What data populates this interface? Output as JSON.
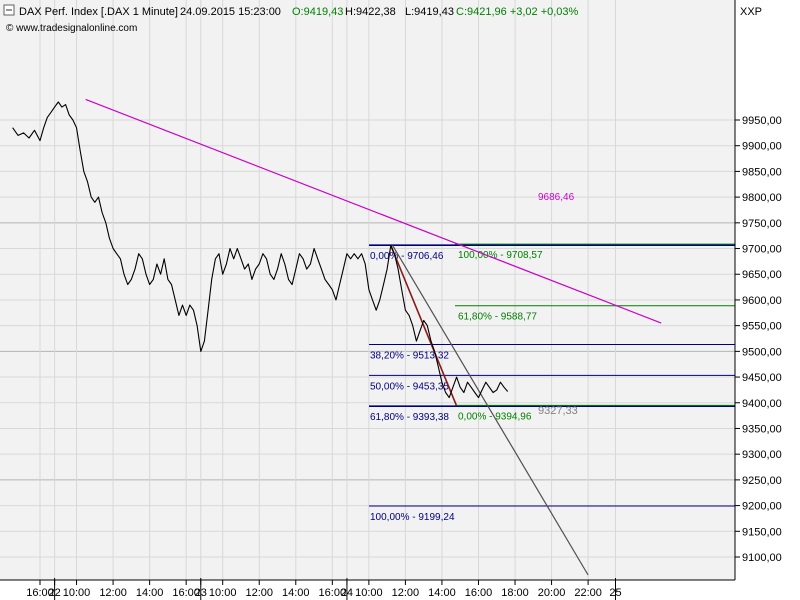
{
  "header": {
    "name": "DAX Perf. Index [.DAX  1 Minute]",
    "datetime": "24.09.2015 15:23:00",
    "open": "O:9419,43",
    "high": "H:9422,38",
    "low": "L:9419,43",
    "change": "C:9421,96 +3,02 +0,03%",
    "watermark": "© www.tradesignalonline.com",
    "symbol_label": "XXP"
  },
  "colors": {
    "background": "#f2f2f2",
    "grid": "#c8c8c8",
    "price": "#000000",
    "down_move": "#8b1a1a",
    "fib_retracement": "#000080",
    "fib_extension": "#008000",
    "trend_magenta": "#cc00cc",
    "projection": "#505050",
    "projection_label": "#808080",
    "header_change": "#008000"
  },
  "chart_data": {
    "type": "line",
    "title": "DAX Perf. Index [.DAX  1 Minute]",
    "xlabel": "",
    "ylabel": "",
    "ylim": [
      9065,
      10000
    ],
    "y_ticks": [
      9100,
      9150,
      9200,
      9250,
      9300,
      9350,
      9400,
      9450,
      9500,
      9550,
      9600,
      9650,
      9700,
      9750,
      9800,
      9850,
      9900,
      9950
    ],
    "y_tick_labels": [
      "9100,00",
      "9150,00",
      "9200,00",
      "9250,00",
      "9300,00",
      "9350,00",
      "9400,00",
      "9450,00",
      "9500,00",
      "9550,00",
      "9600,00",
      "9650,00",
      "9700,00",
      "9750,00",
      "9800,00",
      "9850,00",
      "9900,00",
      "9950,00"
    ],
    "x_tick_labels": [
      {
        "label": "16:00",
        "t": 0.0
      },
      {
        "label": "22",
        "t": 0.8
      },
      {
        "label": "10:00",
        "t": 2.0
      },
      {
        "label": "12:00",
        "t": 4.0
      },
      {
        "label": "14:00",
        "t": 6.0
      },
      {
        "label": "16:00",
        "t": 8.0
      },
      {
        "label": "23",
        "t": 8.8
      },
      {
        "label": "10:00",
        "t": 10.0
      },
      {
        "label": "12:00",
        "t": 12.0
      },
      {
        "label": "14:00",
        "t": 14.0
      },
      {
        "label": "16:00",
        "t": 16.0
      },
      {
        "label": "24",
        "t": 16.8
      },
      {
        "label": "10:00",
        "t": 18.0
      },
      {
        "label": "12:00",
        "t": 20.0
      },
      {
        "label": "14:00",
        "t": 22.0
      },
      {
        "label": "16:00",
        "t": 24.0
      },
      {
        "label": "18:00",
        "t": 26.0
      },
      {
        "label": "20:00",
        "t": 28.0
      },
      {
        "label": "22:00",
        "t": 30.0
      },
      {
        "label": "25",
        "t": 31.5
      }
    ],
    "day_separators_t": [
      0.8,
      8.8,
      16.8,
      31.5
    ],
    "grid": true,
    "series": [
      {
        "points": [
          [
            -1.5,
            9935
          ],
          [
            -1.2,
            9920
          ],
          [
            -0.9,
            9925
          ],
          [
            -0.6,
            9915
          ],
          [
            -0.3,
            9930
          ],
          [
            0.0,
            9910
          ],
          [
            0.2,
            9935
          ],
          [
            0.4,
            9955
          ],
          [
            0.6,
            9965
          ],
          [
            0.8,
            9975
          ],
          [
            1.0,
            9985
          ],
          [
            1.2,
            9975
          ],
          [
            1.4,
            9980
          ],
          [
            1.6,
            9960
          ],
          [
            1.8,
            9950
          ],
          [
            2.0,
            9935
          ],
          [
            2.2,
            9890
          ],
          [
            2.4,
            9850
          ],
          [
            2.6,
            9830
          ],
          [
            2.8,
            9800
          ],
          [
            3.0,
            9790
          ],
          [
            3.2,
            9800
          ],
          [
            3.4,
            9770
          ],
          [
            3.6,
            9750
          ],
          [
            3.8,
            9720
          ],
          [
            4.0,
            9700
          ],
          [
            4.2,
            9690
          ],
          [
            4.4,
            9680
          ],
          [
            4.6,
            9650
          ],
          [
            4.8,
            9630
          ],
          [
            5.0,
            9640
          ],
          [
            5.2,
            9660
          ],
          [
            5.4,
            9690
          ],
          [
            5.6,
            9680
          ],
          [
            5.8,
            9650
          ],
          [
            6.0,
            9630
          ],
          [
            6.2,
            9640
          ],
          [
            6.4,
            9670
          ],
          [
            6.6,
            9650
          ],
          [
            6.8,
            9680
          ],
          [
            7.0,
            9640
          ],
          [
            7.2,
            9630
          ],
          [
            7.4,
            9600
          ],
          [
            7.6,
            9570
          ],
          [
            7.8,
            9590
          ],
          [
            8.0,
            9570
          ],
          [
            8.2,
            9590
          ],
          [
            8.4,
            9580
          ],
          [
            8.6,
            9550
          ],
          [
            8.8,
            9500
          ],
          [
            9.0,
            9520
          ],
          [
            9.2,
            9580
          ],
          [
            9.4,
            9640
          ],
          [
            9.6,
            9680
          ],
          [
            9.8,
            9690
          ],
          [
            10.0,
            9650
          ],
          [
            10.2,
            9670
          ],
          [
            10.4,
            9700
          ],
          [
            10.6,
            9680
          ],
          [
            10.8,
            9700
          ],
          [
            11.0,
            9680
          ],
          [
            11.2,
            9660
          ],
          [
            11.4,
            9670
          ],
          [
            11.6,
            9640
          ],
          [
            11.8,
            9660
          ],
          [
            12.0,
            9670
          ],
          [
            12.2,
            9690
          ],
          [
            12.4,
            9680
          ],
          [
            12.6,
            9650
          ],
          [
            12.8,
            9640
          ],
          [
            13.0,
            9660
          ],
          [
            13.2,
            9690
          ],
          [
            13.4,
            9670
          ],
          [
            13.6,
            9640
          ],
          [
            13.8,
            9630
          ],
          [
            14.0,
            9660
          ],
          [
            14.2,
            9690
          ],
          [
            14.4,
            9680
          ],
          [
            14.6,
            9660
          ],
          [
            14.8,
            9670
          ],
          [
            15.0,
            9700
          ],
          [
            15.2,
            9680
          ],
          [
            15.4,
            9660
          ],
          [
            15.6,
            9640
          ],
          [
            15.8,
            9630
          ],
          [
            16.0,
            9620
          ],
          [
            16.2,
            9600
          ],
          [
            16.4,
            9630
          ],
          [
            16.6,
            9660
          ],
          [
            16.8,
            9690
          ],
          [
            17.0,
            9680
          ],
          [
            17.2,
            9690
          ],
          [
            17.4,
            9680
          ],
          [
            17.6,
            9690
          ],
          [
            17.8,
            9670
          ],
          [
            18.0,
            9620
          ],
          [
            18.2,
            9600
          ],
          [
            18.4,
            9580
          ],
          [
            18.6,
            9600
          ],
          [
            18.8,
            9630
          ],
          [
            19.0,
            9660
          ],
          [
            19.2,
            9706
          ],
          [
            19.4,
            9690
          ],
          [
            19.6,
            9660
          ],
          [
            19.8,
            9620
          ],
          [
            20.0,
            9580
          ],
          [
            20.2,
            9570
          ],
          [
            20.4,
            9550
          ],
          [
            20.6,
            9520
          ],
          [
            20.8,
            9540
          ],
          [
            21.0,
            9560
          ],
          [
            21.2,
            9550
          ],
          [
            21.4,
            9520
          ],
          [
            21.6,
            9500
          ],
          [
            21.8,
            9470
          ],
          [
            22.0,
            9440
          ],
          [
            22.2,
            9420
          ],
          [
            22.4,
            9410
          ],
          [
            22.6,
            9430
          ],
          [
            22.8,
            9450
          ],
          [
            23.0,
            9430
          ],
          [
            23.2,
            9420
          ],
          [
            23.4,
            9440
          ],
          [
            23.6,
            9430
          ],
          [
            23.8,
            9420
          ],
          [
            24.0,
            9410
          ],
          [
            24.2,
            9425
          ],
          [
            24.4,
            9440
          ],
          [
            24.6,
            9430
          ],
          [
            24.8,
            9420
          ],
          [
            25.0,
            9425
          ],
          [
            25.2,
            9440
          ],
          [
            25.4,
            9430
          ],
          [
            25.6,
            9422
          ]
        ]
      }
    ],
    "fib_retracement": [
      {
        "label": "0,00% - 9706,46",
        "y": 9706.46
      },
      {
        "label": "38,20% - 9513,32",
        "y": 9513.32
      },
      {
        "label": "50,00% - 9453,35",
        "y": 9453.35
      },
      {
        "label": "61,80% - 9393,38",
        "y": 9393.38
      },
      {
        "label": "100,00% - 9199,24",
        "y": 9199.24
      }
    ],
    "fib_extension": [
      {
        "label": "100,00% - 9708,57",
        "y": 9708.57
      },
      {
        "label": "61,80% - 9588,77",
        "y": 9588.77
      },
      {
        "label": "0,00% - 9394,96",
        "y": 9394.96
      }
    ],
    "trendlines": [
      {
        "name": "magenta",
        "x0": 2.5,
        "y0": 9990,
        "x1": 34.0,
        "y1": 9555,
        "label": "9686,46"
      },
      {
        "name": "projection",
        "x0": 19.3,
        "y0": 9706,
        "x1": 30.0,
        "y1": 9065,
        "label": "9327,33"
      },
      {
        "name": "down_move",
        "x0": 19.2,
        "y0": 9706,
        "x1": 22.8,
        "y1": 9394
      }
    ]
  }
}
